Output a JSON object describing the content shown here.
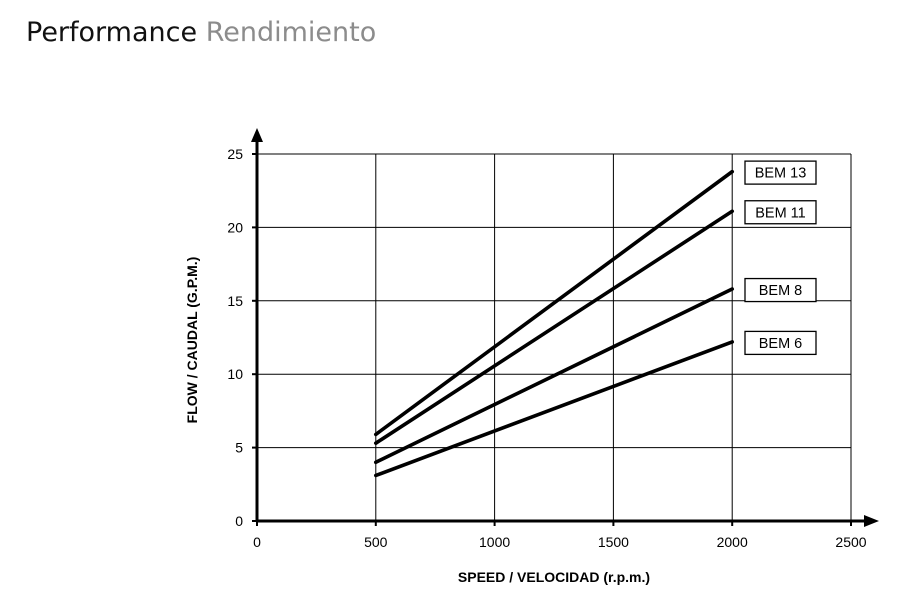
{
  "title": {
    "main": "Performance",
    "secondary": "Rendimiento"
  },
  "chart_data": {
    "type": "line",
    "xlabel": "SPEED  / VELOCIDAD (r.p.m.)",
    "ylabel": "FLOW / CAUDAL (G.P.M.)",
    "xlim": [
      0,
      2500
    ],
    "ylim": [
      0,
      25
    ],
    "xticks": [
      "0",
      "500",
      "1000",
      "1500",
      "2000",
      "2500"
    ],
    "yticks": [
      "0",
      "5",
      "10",
      "15",
      "20",
      "25"
    ],
    "grid": true,
    "legend": "inline labels at right end of each line",
    "line_color": "#000000",
    "series": [
      {
        "name": "BEM 13",
        "x": [
          500,
          2000
        ],
        "y": [
          5.9,
          23.8
        ]
      },
      {
        "name": "BEM 11",
        "x": [
          500,
          2000
        ],
        "y": [
          5.3,
          21.1
        ]
      },
      {
        "name": "BEM 8",
        "x": [
          500,
          2000
        ],
        "y": [
          4.0,
          15.8
        ]
      },
      {
        "name": "BEM 6",
        "x": [
          500,
          2000
        ],
        "y": [
          3.1,
          12.2
        ]
      }
    ]
  }
}
